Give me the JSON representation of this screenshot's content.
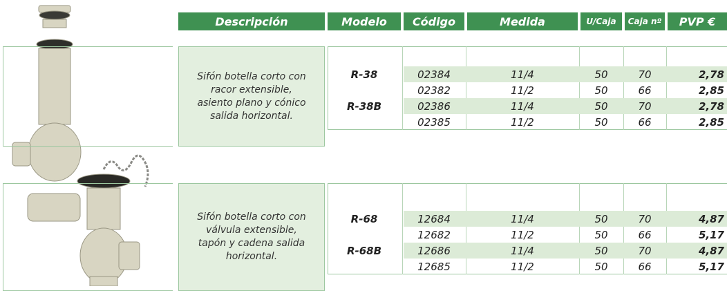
{
  "header": {
    "columns": [
      "Descripción",
      "Modelo",
      "Código",
      "Medida",
      "U/Caja",
      "Caja nº",
      "PVP €"
    ]
  },
  "sections": [
    {
      "description": "Sifón botella corto con racor extensible, asiento plano y cónico salida horizontal.",
      "models": [
        "R-38",
        "R-38B"
      ],
      "rows": [
        [
          "02384",
          "11/4",
          "50",
          "70",
          "2,78"
        ],
        [
          "02382",
          "11/2",
          "50",
          "66",
          "2,85"
        ],
        [
          "02386",
          "11/4",
          "50",
          "70",
          "2,78"
        ],
        [
          "02385",
          "11/2",
          "50",
          "66",
          "2,85"
        ]
      ]
    },
    {
      "description": "Sifón botella corto con válvula extensible, tapón y cadena salida horizontal.",
      "models": [
        "R-68",
        "R-68B"
      ],
      "rows": [
        [
          "12684",
          "11/4",
          "50",
          "70",
          "4,87"
        ],
        [
          "12682",
          "11/2",
          "50",
          "66",
          "5,17"
        ],
        [
          "12686",
          "11/4",
          "50",
          "70",
          "4,87"
        ],
        [
          "12685",
          "11/2",
          "50",
          "66",
          "5,17"
        ]
      ]
    }
  ]
}
